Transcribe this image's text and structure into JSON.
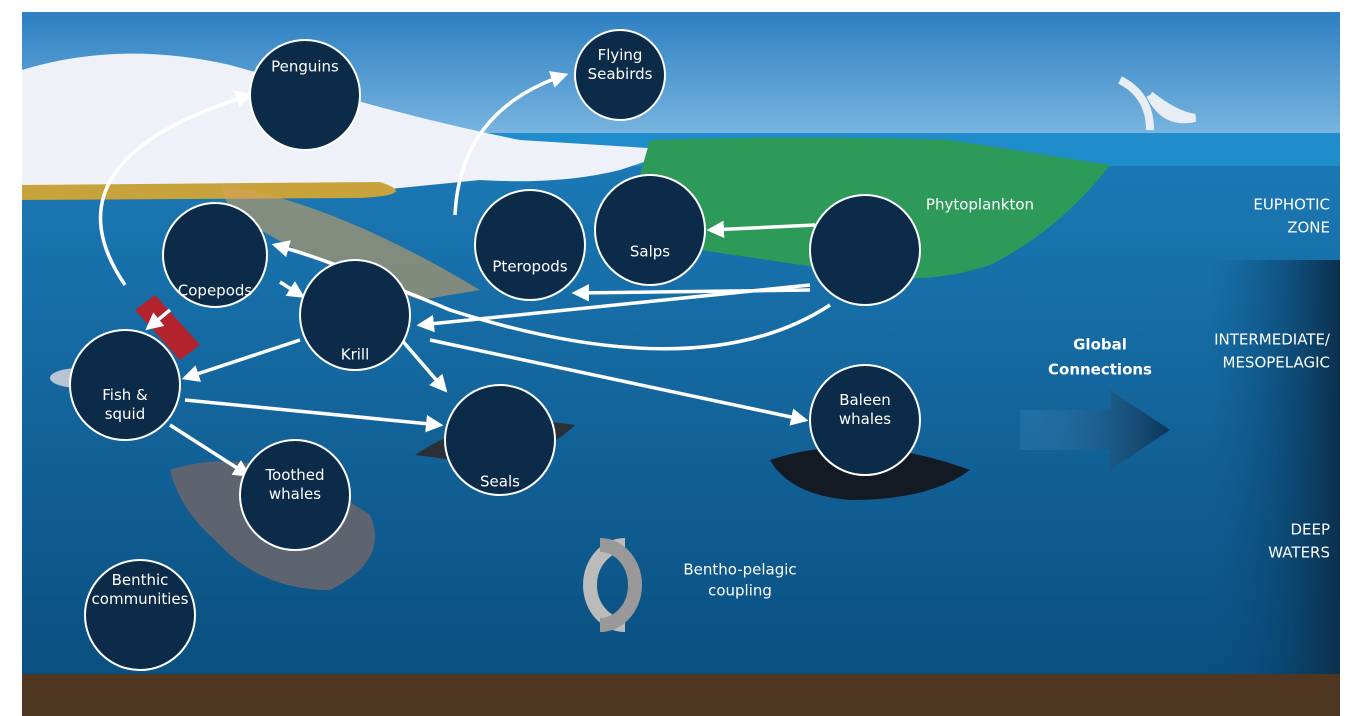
{
  "nodes": [
    {
      "label": [
        "Penguins"
      ]
    },
    {
      "label": [
        "Flying",
        "Seabirds"
      ]
    },
    {
      "label": [
        "Salps"
      ]
    },
    {
      "label": [
        "Pteropods"
      ]
    },
    {
      "label": [
        "Phytoplankton"
      ]
    },
    {
      "label": [
        "Copepods"
      ]
    },
    {
      "label": [
        "Krill"
      ]
    },
    {
      "label": [
        "Fish &",
        "squid"
      ]
    },
    {
      "label": [
        "Seals"
      ]
    },
    {
      "label": [
        "Baleen",
        "whales"
      ]
    },
    {
      "label": [
        "Toothed",
        "whales"
      ]
    },
    {
      "label": [
        "Benthic",
        "communities"
      ]
    }
  ],
  "zones": [
    {
      "label": [
        "EUPHOTIC",
        "ZONE"
      ]
    },
    {
      "label": [
        "INTERMEDIATE/",
        "MESOPELAGIC"
      ]
    },
    {
      "label": [
        "DEEP",
        "WATERS"
      ]
    }
  ],
  "global": [
    "Global",
    "Connections"
  ],
  "coupling": [
    "Bentho-pelagic",
    "coupling"
  ]
}
